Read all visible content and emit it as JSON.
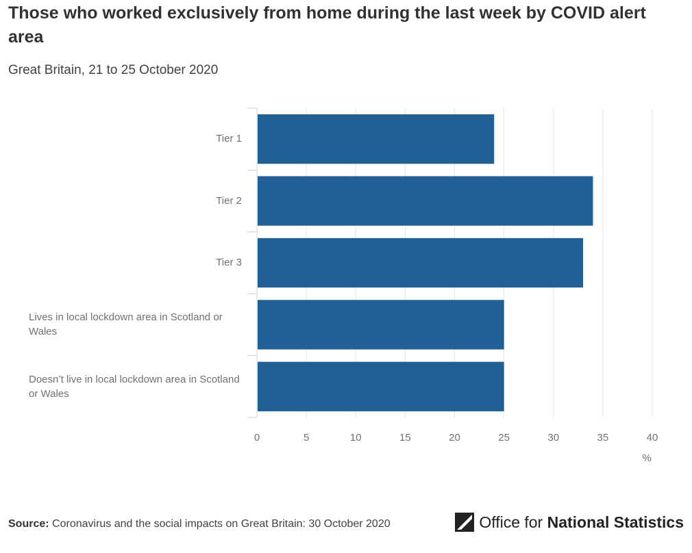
{
  "header": {
    "title": "Those who worked exclusively from home during the last week by COVID alert area",
    "subtitle": "Great Britain, 21 to 25 October 2020"
  },
  "chart_data": {
    "type": "bar",
    "orientation": "horizontal",
    "categories": [
      "Tier 1",
      "Tier 2",
      "Tier 3",
      "Lives in local lockdown area in Scotland or Wales",
      "Doesn’t live in local lockdown area in Scotland or Wales"
    ],
    "values": [
      24,
      34,
      33,
      25,
      25
    ],
    "xlabel": "%",
    "xlim": [
      0,
      40
    ],
    "xticks": [
      0,
      5,
      10,
      15,
      20,
      25,
      30,
      35,
      40
    ],
    "grid": true,
    "legend": "none",
    "bar_color": "#206095"
  },
  "footer": {
    "source_label": "Source:",
    "source_text": "Coronavirus and the social impacts on Great Britain: 30 October 2020"
  },
  "logo": {
    "prefix": "Office for ",
    "strong": "National Statistics"
  }
}
